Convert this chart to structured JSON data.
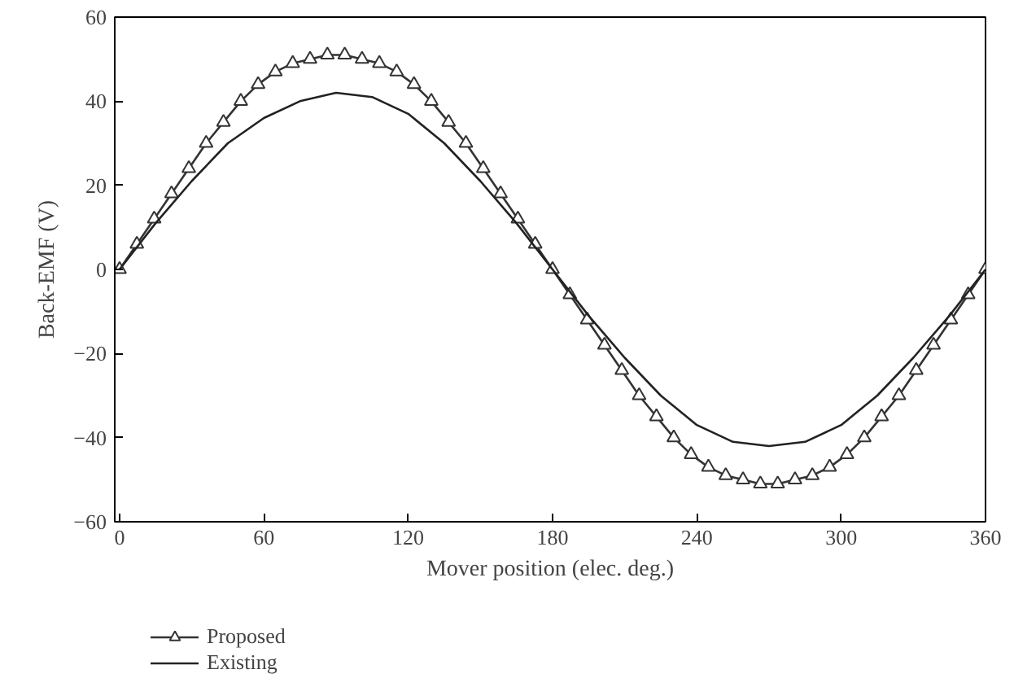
{
  "chart_data": {
    "type": "line",
    "xlabel": "Mover position (elec. deg.)",
    "ylabel": "Back-EMF (V)",
    "xlim": [
      -2,
      360
    ],
    "ylim": [
      -60,
      60
    ],
    "xticks": [
      0,
      60,
      120,
      180,
      240,
      300,
      360
    ],
    "yticks": [
      {
        "value": -60,
        "label": "−60"
      },
      {
        "value": -40,
        "label": "−40"
      },
      {
        "value": -20,
        "label": "−20"
      },
      0,
      20,
      40,
      60
    ],
    "grid": false,
    "legend": "bottom left",
    "line_style": "solid",
    "series": [
      {
        "name": "Proposed",
        "color": "#333333",
        "marker": "triangle",
        "x": [
          0,
          7.2,
          14.4,
          21.6,
          28.8,
          36,
          43.2,
          50.4,
          57.6,
          64.8,
          72,
          79.2,
          86.4,
          93.6,
          100.8,
          108,
          115.2,
          122.4,
          129.6,
          136.8,
          144,
          151.2,
          158.4,
          165.6,
          172.8,
          180,
          187.2,
          194.4,
          201.6,
          208.8,
          216,
          223.2,
          230.4,
          237.6,
          244.8,
          252,
          259.2,
          266.4,
          273.6,
          280.8,
          288,
          295.2,
          302.4,
          309.6,
          316.8,
          324,
          331.2,
          338.4,
          345.6,
          352.8,
          360
        ],
        "values": [
          0,
          6,
          12,
          18,
          24,
          30,
          35,
          40,
          44,
          47,
          49,
          50,
          51,
          51,
          50,
          49,
          47,
          44,
          40,
          35,
          30,
          24,
          18,
          12,
          6,
          0,
          -6,
          -12,
          -18,
          -24,
          -30,
          -35,
          -40,
          -44,
          -47,
          -49,
          -50,
          -51,
          -51,
          -50,
          -49,
          -47,
          -44,
          -40,
          -35,
          -30,
          -24,
          -18,
          -12,
          -6,
          0
        ]
      },
      {
        "name": "Existing",
        "color": "#222222",
        "marker": "none",
        "x": [
          0,
          15,
          30,
          45,
          60,
          75,
          90,
          105,
          120,
          135,
          150,
          165,
          180,
          195,
          210,
          225,
          240,
          255,
          270,
          285,
          300,
          315,
          330,
          345,
          360
        ],
        "values": [
          0,
          11,
          21,
          30,
          36,
          40,
          42,
          41,
          37,
          30,
          21,
          11,
          0,
          -11,
          -21,
          -30,
          -37,
          -41,
          -42,
          -41,
          -37,
          -30,
          -21,
          -11,
          0
        ]
      }
    ]
  }
}
